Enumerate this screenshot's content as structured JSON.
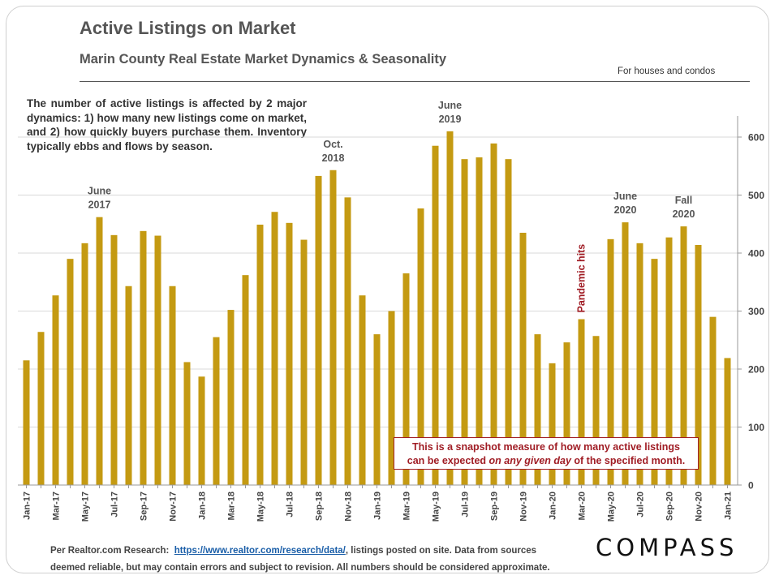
{
  "header": {
    "title": "Active Listings on Market",
    "subtitle": "Marin County Real Estate Market Dynamics & Seasonality",
    "note": "For houses and condos"
  },
  "intro_text": "The number of active listings is affected by 2 major dynamics: 1) how many new listings come on market, and 2) how quickly buyers purchase them. Inventory typically ebbs and flows by season.",
  "callout": {
    "line1": "This is a snapshot measure of how many active listings",
    "line2_before": "can be expected ",
    "line2_em": "on any given day",
    "line2_after": " of the specified month."
  },
  "footer": {
    "line1_prefix": "Per Realtor.com Research:",
    "link_text": "https://www.realtor.com/research/data/",
    "line1_suffix": ", listings posted on site. Data from sources",
    "line2": "deemed reliable, but may contain errors and subject to revision.  All numbers should be considered approximate."
  },
  "logo": "COMPASS",
  "colors": {
    "bar": "#c49a12",
    "accent": "#a01d25",
    "grid": "#d9d9d9",
    "text": "#555555"
  },
  "chart_data": {
    "type": "bar",
    "title": "Active Listings on Market",
    "subtitle": "Marin County Real Estate Market Dynamics & Seasonality",
    "ylim": [
      0,
      600
    ],
    "yticks": [
      0,
      100,
      200,
      300,
      400,
      500,
      600
    ],
    "y_axis_position": "right",
    "grid": true,
    "categories": [
      "Jan-17",
      "Feb-17",
      "Mar-17",
      "Apr-17",
      "May-17",
      "Jun-17",
      "Jul-17",
      "Aug-17",
      "Sep-17",
      "Oct-17",
      "Nov-17",
      "Dec-17",
      "Jan-18",
      "Feb-18",
      "Mar-18",
      "Apr-18",
      "May-18",
      "Jun-18",
      "Jul-18",
      "Aug-18",
      "Sep-18",
      "Oct-18",
      "Nov-18",
      "Dec-18",
      "Jan-19",
      "Feb-19",
      "Mar-19",
      "Apr-19",
      "May-19",
      "Jun-19",
      "Jul-19",
      "Aug-19",
      "Sep-19",
      "Oct-19",
      "Nov-19",
      "Dec-19",
      "Jan-20",
      "Feb-20",
      "Mar-20",
      "Apr-20",
      "May-20",
      "Jun-20",
      "Jul-20",
      "Aug-20",
      "Sep-20",
      "Oct-20",
      "Nov-20",
      "Dec-20",
      "Jan-21"
    ],
    "values": [
      215,
      264,
      327,
      390,
      417,
      462,
      431,
      343,
      438,
      430,
      343,
      212,
      187,
      255,
      302,
      362,
      449,
      471,
      452,
      423,
      533,
      543,
      496,
      327,
      260,
      300,
      365,
      477,
      585,
      610,
      562,
      565,
      589,
      562,
      435,
      260,
      210,
      246,
      286,
      257,
      424,
      453,
      417,
      390,
      427,
      446,
      414,
      290,
      219
    ],
    "annotations": [
      {
        "label_lines": [
          "June",
          "2017"
        ],
        "category": "Jun-17"
      },
      {
        "label_lines": [
          "Oct.",
          "2018"
        ],
        "category": "Oct-18"
      },
      {
        "label_lines": [
          "June",
          "2019"
        ],
        "category": "Jun-19"
      },
      {
        "label_lines": [
          "June",
          "2020"
        ],
        "category": "Jun-20"
      },
      {
        "label_lines": [
          "Fall",
          "2020"
        ],
        "category": "Oct-20"
      },
      {
        "label_lines": [
          "Pandemic hits"
        ],
        "category": "Mar-20",
        "rotated": true,
        "color": "#a01d25"
      }
    ]
  }
}
